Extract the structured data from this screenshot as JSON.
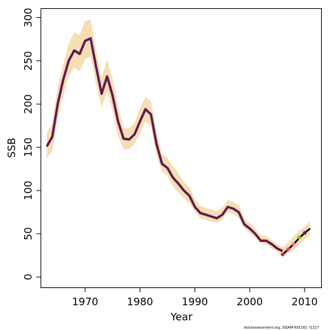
{
  "chart_data": {
    "type": "line",
    "xlabel": "Year",
    "ylabel": "SSB",
    "xlim": [
      1962,
      2013
    ],
    "ylim": [
      -12,
      310
    ],
    "xticks": [
      1970,
      1980,
      1990,
      2000,
      2010
    ],
    "yticks": [
      0,
      50,
      100,
      150,
      200,
      250,
      300
    ],
    "grid": false,
    "colors": {
      "band": "#f5deb3",
      "estimate": "#7b0c2c",
      "forecast": "#000000",
      "retro_points": [
        "#e6194b",
        "#ff3399",
        "#ff66cc",
        "#7cc81e",
        "#5a0fa0"
      ]
    },
    "years": [
      1963,
      1964,
      1965,
      1966,
      1967,
      1968,
      1969,
      1970,
      1971,
      1972,
      1973,
      1974,
      1975,
      1976,
      1977,
      1978,
      1979,
      1980,
      1981,
      1982,
      1983,
      1984,
      1985,
      1986,
      1987,
      1988,
      1989,
      1990,
      1991,
      1992,
      1993,
      1994,
      1995,
      1996,
      1997,
      1998,
      1999,
      2000,
      2001,
      2002,
      2003,
      2004,
      2005,
      2006
    ],
    "estimate": [
      151,
      162,
      200,
      228,
      250,
      262,
      258,
      273,
      276,
      243,
      212,
      232,
      210,
      180,
      160,
      159,
      165,
      180,
      194,
      188,
      154,
      131,
      126,
      115,
      108,
      100,
      94,
      81,
      74,
      72,
      70,
      68,
      72,
      81,
      79,
      75,
      61,
      56,
      50,
      42,
      42,
      38,
      33,
      30
    ],
    "upper": [
      166,
      178,
      220,
      245,
      270,
      283,
      280,
      296,
      298,
      262,
      230,
      252,
      230,
      198,
      172,
      172,
      178,
      195,
      208,
      203,
      168,
      142,
      138,
      128,
      120,
      110,
      104,
      90,
      82,
      80,
      78,
      76,
      80,
      89,
      87,
      83,
      68,
      62,
      56,
      48,
      47,
      43,
      38,
      34
    ],
    "lower": [
      137,
      146,
      182,
      210,
      232,
      242,
      238,
      252,
      255,
      223,
      196,
      214,
      193,
      163,
      148,
      148,
      154,
      166,
      180,
      174,
      141,
      122,
      117,
      105,
      98,
      91,
      85,
      75,
      68,
      66,
      64,
      63,
      66,
      75,
      73,
      68,
      57,
      51,
      45,
      39,
      38,
      33,
      29,
      24
    ],
    "forecast": {
      "years": [
        2006,
        2007,
        2008,
        2009,
        2010,
        2011
      ],
      "values": [
        26,
        32,
        38,
        45,
        51,
        56
      ],
      "upper": [
        28,
        40,
        47,
        54,
        58,
        64
      ],
      "lower": [
        24,
        28,
        31,
        37,
        44,
        48
      ]
    },
    "retro_points": {
      "years": [
        2006,
        2007,
        2008,
        2009,
        2010
      ],
      "values": [
        26,
        32,
        38,
        46,
        51
      ]
    },
    "credit": "stockassessment.org, SISAM-NSCOD, r1217"
  }
}
